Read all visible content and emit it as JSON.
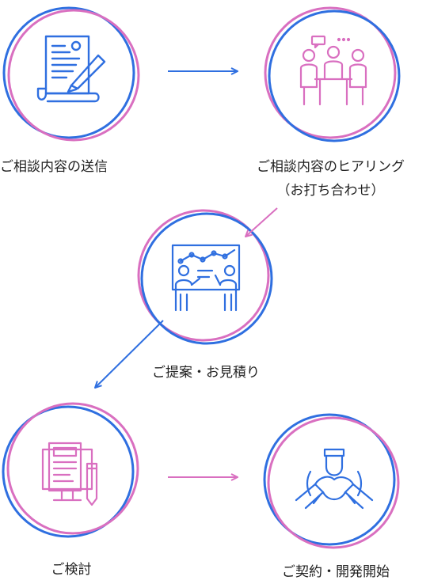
{
  "colors": {
    "blue": "#2f6fe0",
    "pink": "#d96fc0"
  },
  "steps": [
    {
      "id": 1,
      "label": "ご相談内容の送信",
      "icon": "document-pen-icon"
    },
    {
      "id": 2,
      "label": "ご相談内容のヒアリング",
      "sublabel": "（お打ち合わせ）",
      "icon": "meeting-icon"
    },
    {
      "id": 3,
      "label": "ご提案・お見積り",
      "icon": "presentation-icon"
    },
    {
      "id": 4,
      "label": "ご検討",
      "icon": "computer-document-icon"
    },
    {
      "id": 5,
      "label": "ご契約・開発開始",
      "icon": "hands-together-icon"
    }
  ]
}
